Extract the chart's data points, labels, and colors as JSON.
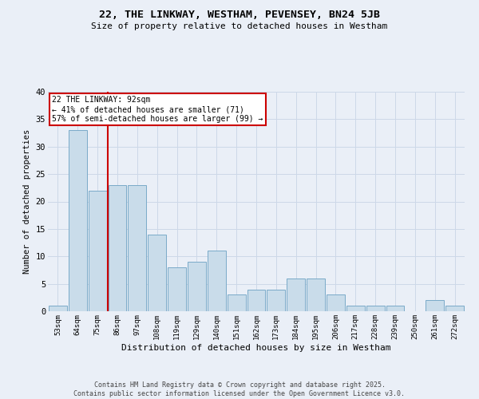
{
  "title": "22, THE LINKWAY, WESTHAM, PEVENSEY, BN24 5JB",
  "subtitle": "Size of property relative to detached houses in Westham",
  "xlabel": "Distribution of detached houses by size in Westham",
  "ylabel": "Number of detached properties",
  "bins": [
    "53sqm",
    "64sqm",
    "75sqm",
    "86sqm",
    "97sqm",
    "108sqm",
    "119sqm",
    "129sqm",
    "140sqm",
    "151sqm",
    "162sqm",
    "173sqm",
    "184sqm",
    "195sqm",
    "206sqm",
    "217sqm",
    "228sqm",
    "239sqm",
    "250sqm",
    "261sqm",
    "272sqm"
  ],
  "values": [
    1,
    33,
    22,
    23,
    23,
    14,
    8,
    9,
    11,
    3,
    4,
    4,
    6,
    6,
    3,
    1,
    1,
    1,
    0,
    2,
    1
  ],
  "bar_color": "#c9dcea",
  "bar_edge_color": "#7aaac8",
  "grid_color": "#cdd8e8",
  "bg_color": "#eaeff7",
  "highlight_bin_index": 3,
  "annotation_line1": "22 THE LINKWAY: 92sqm",
  "annotation_line2": "← 41% of detached houses are smaller (71)",
  "annotation_line3": "57% of semi-detached houses are larger (99) →",
  "annotation_box_color": "#ffffff",
  "annotation_box_edge": "#cc0000",
  "vline_color": "#cc0000",
  "footer1": "Contains HM Land Registry data © Crown copyright and database right 2025.",
  "footer2": "Contains public sector information licensed under the Open Government Licence v3.0.",
  "ylim": [
    0,
    40
  ],
  "yticks": [
    0,
    5,
    10,
    15,
    20,
    25,
    30,
    35,
    40
  ]
}
